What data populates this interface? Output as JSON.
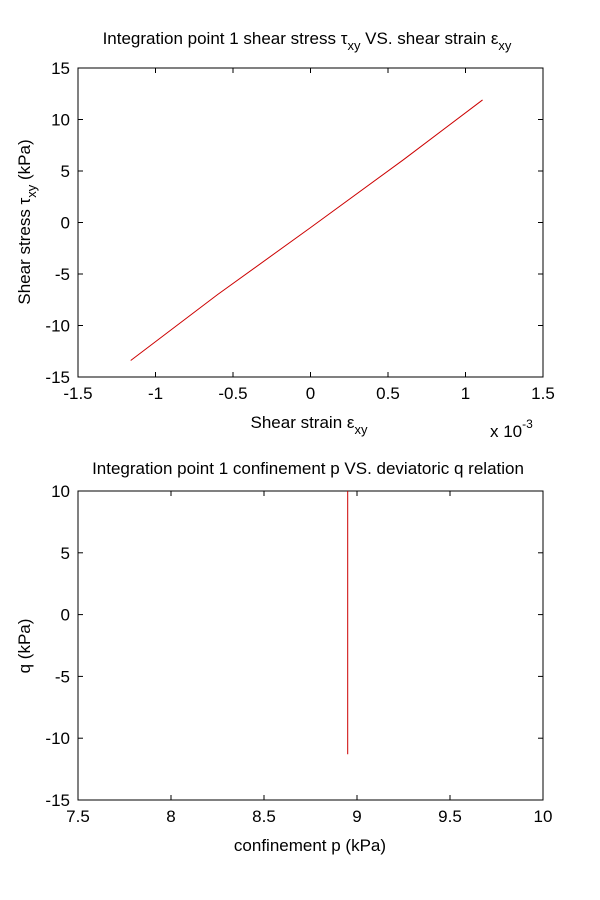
{
  "chart_data": [
    {
      "type": "line",
      "title": "Integration point 1 shear stress τxy VS. shear strain εxy",
      "title_parts": {
        "a": "Integration point 1 shear stress ",
        "sym1": "τ",
        "sub1": "xy",
        "b": " VS. shear strain ",
        "sym2": "ε",
        "sub2": "xy"
      },
      "xlabel": "Shear strain εxy",
      "xlabel_parts": {
        "main": "Shear strain ",
        "sym": "ε",
        "sub": "xy"
      },
      "ylabel": "Shear stress τxy (kPa)",
      "ylabel_parts": {
        "main": "Shear stress ",
        "sym": "τ",
        "sub": "xy",
        "unit": " (kPa)"
      },
      "x_multiplier": {
        "base": "x 10",
        "exp": "-3"
      },
      "xlim": [
        -1.5,
        1.5
      ],
      "ylim": [
        -15,
        15
      ],
      "xticks": [
        -1.5,
        -1,
        -0.5,
        0,
        0.5,
        1,
        1.5
      ],
      "yticks": [
        -15,
        -10,
        -5,
        0,
        5,
        10,
        15
      ],
      "xtick_labels": [
        "-1.5",
        "-1",
        "-0.5",
        "0",
        "0.5",
        "1",
        "1.5"
      ],
      "ytick_labels": [
        "-15",
        "-10",
        "-5",
        "0",
        "5",
        "10",
        "15"
      ],
      "grid": false,
      "series": [
        {
          "color": "#cc0000",
          "x": [
            -1.16,
            -0.6,
            0,
            0.6,
            1.11
          ],
          "y": [
            -13.4,
            -7.0,
            -0.5,
            6.1,
            11.9
          ]
        }
      ]
    },
    {
      "type": "line",
      "title": "Integration point 1 confinement p VS. deviatoric q relation",
      "xlabel": "confinement p (kPa)",
      "ylabel": "q (kPa)",
      "xlim": [
        7.5,
        10
      ],
      "ylim": [
        -15,
        10
      ],
      "xticks": [
        7.5,
        8,
        8.5,
        9,
        9.5,
        10
      ],
      "yticks": [
        -15,
        -10,
        -5,
        0,
        5,
        10
      ],
      "xtick_labels": [
        "7.5",
        "8",
        "8.5",
        "9",
        "9.5",
        "10"
      ],
      "ytick_labels": [
        "-15",
        "-10",
        "-5",
        "0",
        "5",
        "10"
      ],
      "grid": false,
      "series": [
        {
          "color": "#cc0000",
          "x": [
            8.95,
            8.95
          ],
          "y": [
            -11.3,
            10
          ]
        }
      ]
    }
  ]
}
